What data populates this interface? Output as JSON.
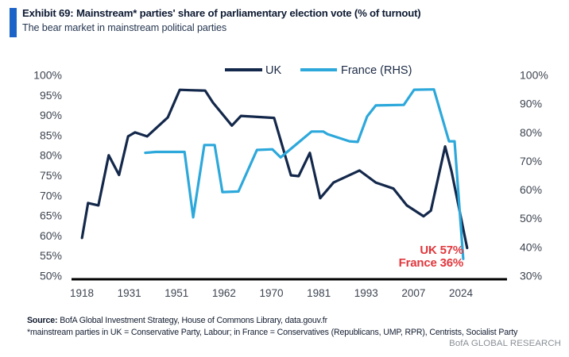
{
  "header": {
    "exhibit_title": "Exhibit 69: Mainstream* parties' share of parliamentary election vote (% of turnout)",
    "subtitle": "The bear market in mainstream political parties"
  },
  "footer": {
    "source_label": "Source:",
    "source_text": " BofA Global Investment Strategy, House of Commons Library, data.gouv.fr",
    "footnote": "*mainstream parties in UK = Conservative Party, Labour; in France = Conservatives (Republicans, UMP, RPR), Centrists, Socialist Party",
    "brand": "BofA GLOBAL RESEARCH"
  },
  "chart_data": {
    "type": "line",
    "title": "Mainstream parties' share of parliamentary election vote (% of turnout)",
    "legend_position": "top",
    "grid": false,
    "colors": {
      "uk": "#14284b",
      "france": "#2da8db",
      "annotation_red": "#e1373c",
      "axis_line": "#000000",
      "tick_text": "#3d4450"
    },
    "legend": [
      {
        "name": "UK",
        "color": "#14284b"
      },
      {
        "name": "France (RHS)",
        "color": "#2da8db"
      }
    ],
    "left_axis": {
      "min": 50,
      "max": 100,
      "ticks": [
        "100%",
        "95%",
        "90%",
        "85%",
        "80%",
        "75%",
        "70%",
        "65%",
        "60%",
        "55%",
        "50%"
      ]
    },
    "right_axis": {
      "min": 30,
      "max": 100,
      "ticks": [
        "100%",
        "90%",
        "80%",
        "70%",
        "60%",
        "50%",
        "40%",
        "30%"
      ]
    },
    "x_axis": {
      "labels": [
        "1918",
        "1931",
        "1951",
        "1962",
        "1970",
        "1981",
        "1993",
        "2007",
        "2024"
      ]
    },
    "annotations": [
      {
        "text": "UK 57%",
        "color": "#e1373c"
      },
      {
        "text": "France 36%",
        "color": "#e1373c"
      }
    ],
    "series": [
      {
        "name": "UK",
        "axis": "left",
        "color": "#14284b",
        "points": [
          {
            "year": "1918",
            "x": 1.7,
            "value": 59.5
          },
          {
            "year": "1922",
            "x": 3.1,
            "value": 68.2
          },
          {
            "year": "1923",
            "x": 5.5,
            "value": 67.6
          },
          {
            "year": "1924",
            "x": 7.9,
            "value": 80.1
          },
          {
            "year": "1929",
            "x": 10.3,
            "value": 75.2
          },
          {
            "year": "1931",
            "x": 12.4,
            "value": 84.8
          },
          {
            "year": "1935",
            "x": 14.0,
            "value": 85.8
          },
          {
            "year": "1945",
            "x": 16.8,
            "value": 84.8
          },
          {
            "year": "1950",
            "x": 21.6,
            "value": 89.5
          },
          {
            "year": "1951",
            "x": 24.4,
            "value": 96.4
          },
          {
            "year": "1955",
            "x": 26.9,
            "value": 96.3
          },
          {
            "year": null,
            "x": 30.3,
            "value": 96.2
          },
          {
            "year": "1959",
            "x": 32.1,
            "value": 93.2
          },
          {
            "year": "1964",
            "x": 36.5,
            "value": 87.5
          },
          {
            "year": "1966",
            "x": 38.6,
            "value": 89.9
          },
          {
            "year": "1970",
            "x": 46.3,
            "value": 89.4
          },
          {
            "year": "1974 Feb",
            "x": 50.2,
            "value": 75.1
          },
          {
            "year": "1974 Oct",
            "x": 52.0,
            "value": 74.9
          },
          {
            "year": "1979",
            "x": 54.6,
            "value": 80.7
          },
          {
            "year": "1983",
            "x": 57.0,
            "value": 69.4
          },
          {
            "year": "1987",
            "x": 60.1,
            "value": 73.3
          },
          {
            "year": "1992",
            "x": 66.1,
            "value": 76.3
          },
          {
            "year": "1997",
            "x": 69.9,
            "value": 73.3
          },
          {
            "year": "2001",
            "x": 74.0,
            "value": 71.8
          },
          {
            "year": "2005",
            "x": 77.1,
            "value": 67.6
          },
          {
            "year": "2010",
            "x": 81.0,
            "value": 64.9
          },
          {
            "year": "2015",
            "x": 82.7,
            "value": 66.3
          },
          {
            "year": "2017",
            "x": 86.0,
            "value": 82.3
          },
          {
            "year": "2019",
            "x": 87.5,
            "value": 76.0
          },
          {
            "year": "2024",
            "x": 91.1,
            "value": 57.0
          }
        ]
      },
      {
        "name": "France (RHS)",
        "axis": "right",
        "color": "#2da8db",
        "points": [
          {
            "year": "1945",
            "x": 16.4,
            "value": 73.0
          },
          {
            "year": "1946",
            "x": 18.8,
            "value": 73.3
          },
          {
            "year": "1951",
            "x": 25.5,
            "value": 73.3
          },
          {
            "year": "1956",
            "x": 27.5,
            "value": 50.5
          },
          {
            "year": "1958",
            "x": 30.1,
            "value": 75.7
          },
          {
            "year": "1962",
            "x": 32.5,
            "value": 75.7
          },
          {
            "year": "1967",
            "x": 34.3,
            "value": 59.3
          },
          {
            "year": "1968",
            "x": 38.0,
            "value": 59.5
          },
          {
            "year": "1973",
            "x": 42.3,
            "value": 74.0
          },
          {
            "year": "1978",
            "x": 45.9,
            "value": 74.2
          },
          {
            "year": null,
            "x": 47.8,
            "value": 71.4
          },
          {
            "year": "1981",
            "x": 55.0,
            "value": 80.4
          },
          {
            "year": null,
            "x": 57.7,
            "value": 80.4
          },
          {
            "year": "1986",
            "x": 58.7,
            "value": 79.5
          },
          {
            "year": "1988",
            "x": 63.8,
            "value": 77.0
          },
          {
            "year": null,
            "x": 65.7,
            "value": 76.8
          },
          {
            "year": "1993",
            "x": 67.9,
            "value": 85.7
          },
          {
            "year": "1997",
            "x": 69.9,
            "value": 89.5
          },
          {
            "year": "2002",
            "x": 76.4,
            "value": 89.7
          },
          {
            "year": "2007",
            "x": 78.8,
            "value": 95.0
          },
          {
            "year": "2012",
            "x": 83.4,
            "value": 95.1
          },
          {
            "year": "2017",
            "x": 86.9,
            "value": 77.0
          },
          {
            "year": "2022",
            "x": 88.2,
            "value": 77.0
          },
          {
            "year": "2024",
            "x": 90.2,
            "value": 36.0
          }
        ]
      }
    ]
  }
}
